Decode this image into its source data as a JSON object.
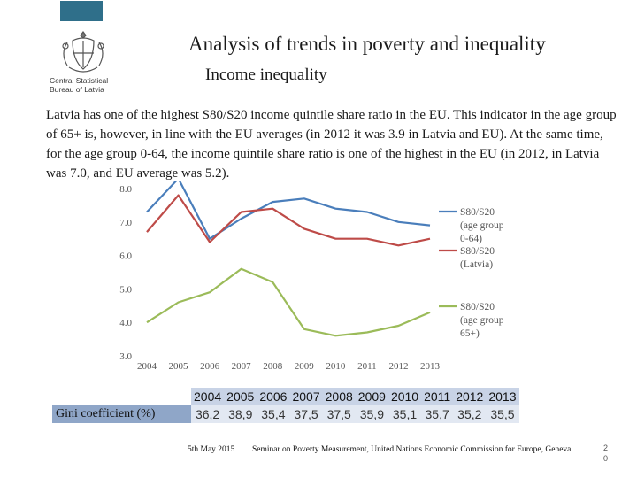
{
  "header": {
    "org_line1": "Central Statistical",
    "org_line2": "Bureau of Latvia",
    "title": "Analysis of trends in poverty and inequality",
    "subtitle": "Income inequality"
  },
  "body_text": "Latvia has one of the highest S80/S20 income quintile share ratio in the EU. This indicator in the age group of 65+ is, however, in line with the EU averages (in 2012 it was 3.9 in Latvia and EU). At the same time, for the age group 0-64, the income quintile share ratio is one of the highest in the EU (in 2012, in Latvia was 7.0, and EU average was 5.2).",
  "colors": {
    "accent": "#2f6f8a",
    "blue_series": "#4a7ebb",
    "red_series": "#be4b48",
    "green_series": "#9bbb59"
  },
  "chart_data": {
    "type": "line",
    "x": [
      "2004",
      "2005",
      "2006",
      "2007",
      "2008",
      "2009",
      "2010",
      "2011",
      "2012",
      "2013"
    ],
    "ylim": [
      3.0,
      8.0
    ],
    "yticks": [
      "3.0",
      "4.0",
      "5.0",
      "6.0",
      "7.0",
      "8.0"
    ],
    "grid": false,
    "legend_position": "right",
    "series": [
      {
        "name": "S80/S20 (age group 0-64)",
        "legend_lines": [
          "S80/S20",
          "(age group",
          "0-64)"
        ],
        "color": "#4a7ebb",
        "values": [
          7.3,
          8.3,
          6.5,
          7.1,
          7.6,
          7.7,
          7.4,
          7.3,
          7.0,
          6.9
        ]
      },
      {
        "name": "S80/S20 (Latvia)",
        "legend_lines": [
          "S80/S20",
          "(Latvia)"
        ],
        "color": "#be4b48",
        "values": [
          6.7,
          7.8,
          6.4,
          7.3,
          7.4,
          6.8,
          6.5,
          6.5,
          6.3,
          6.5
        ]
      },
      {
        "name": "S80/S20 (age group 65+)",
        "legend_lines": [
          "S80/S20",
          "(age group",
          "65+)"
        ],
        "color": "#9bbb59",
        "values": [
          4.0,
          4.6,
          4.9,
          5.6,
          5.2,
          3.8,
          3.6,
          3.7,
          3.9,
          4.3
        ]
      }
    ]
  },
  "gini_table": {
    "label": "Gini coefficient (%)",
    "years": [
      "2004",
      "2005",
      "2006",
      "2007",
      "2008",
      "2009",
      "2010",
      "2011",
      "2012",
      "2013"
    ],
    "values": [
      "36,2",
      "38,9",
      "35,4",
      "37,5",
      "37,5",
      "35,9",
      "35,1",
      "35,7",
      "35,2",
      "35,5"
    ]
  },
  "footer": {
    "date": "5th May 2015",
    "seminar": "Seminar on Poverty Measurement, United Nations Economic Commission for Europe, Geneva",
    "page_line1": "2",
    "page_line2": "0"
  }
}
